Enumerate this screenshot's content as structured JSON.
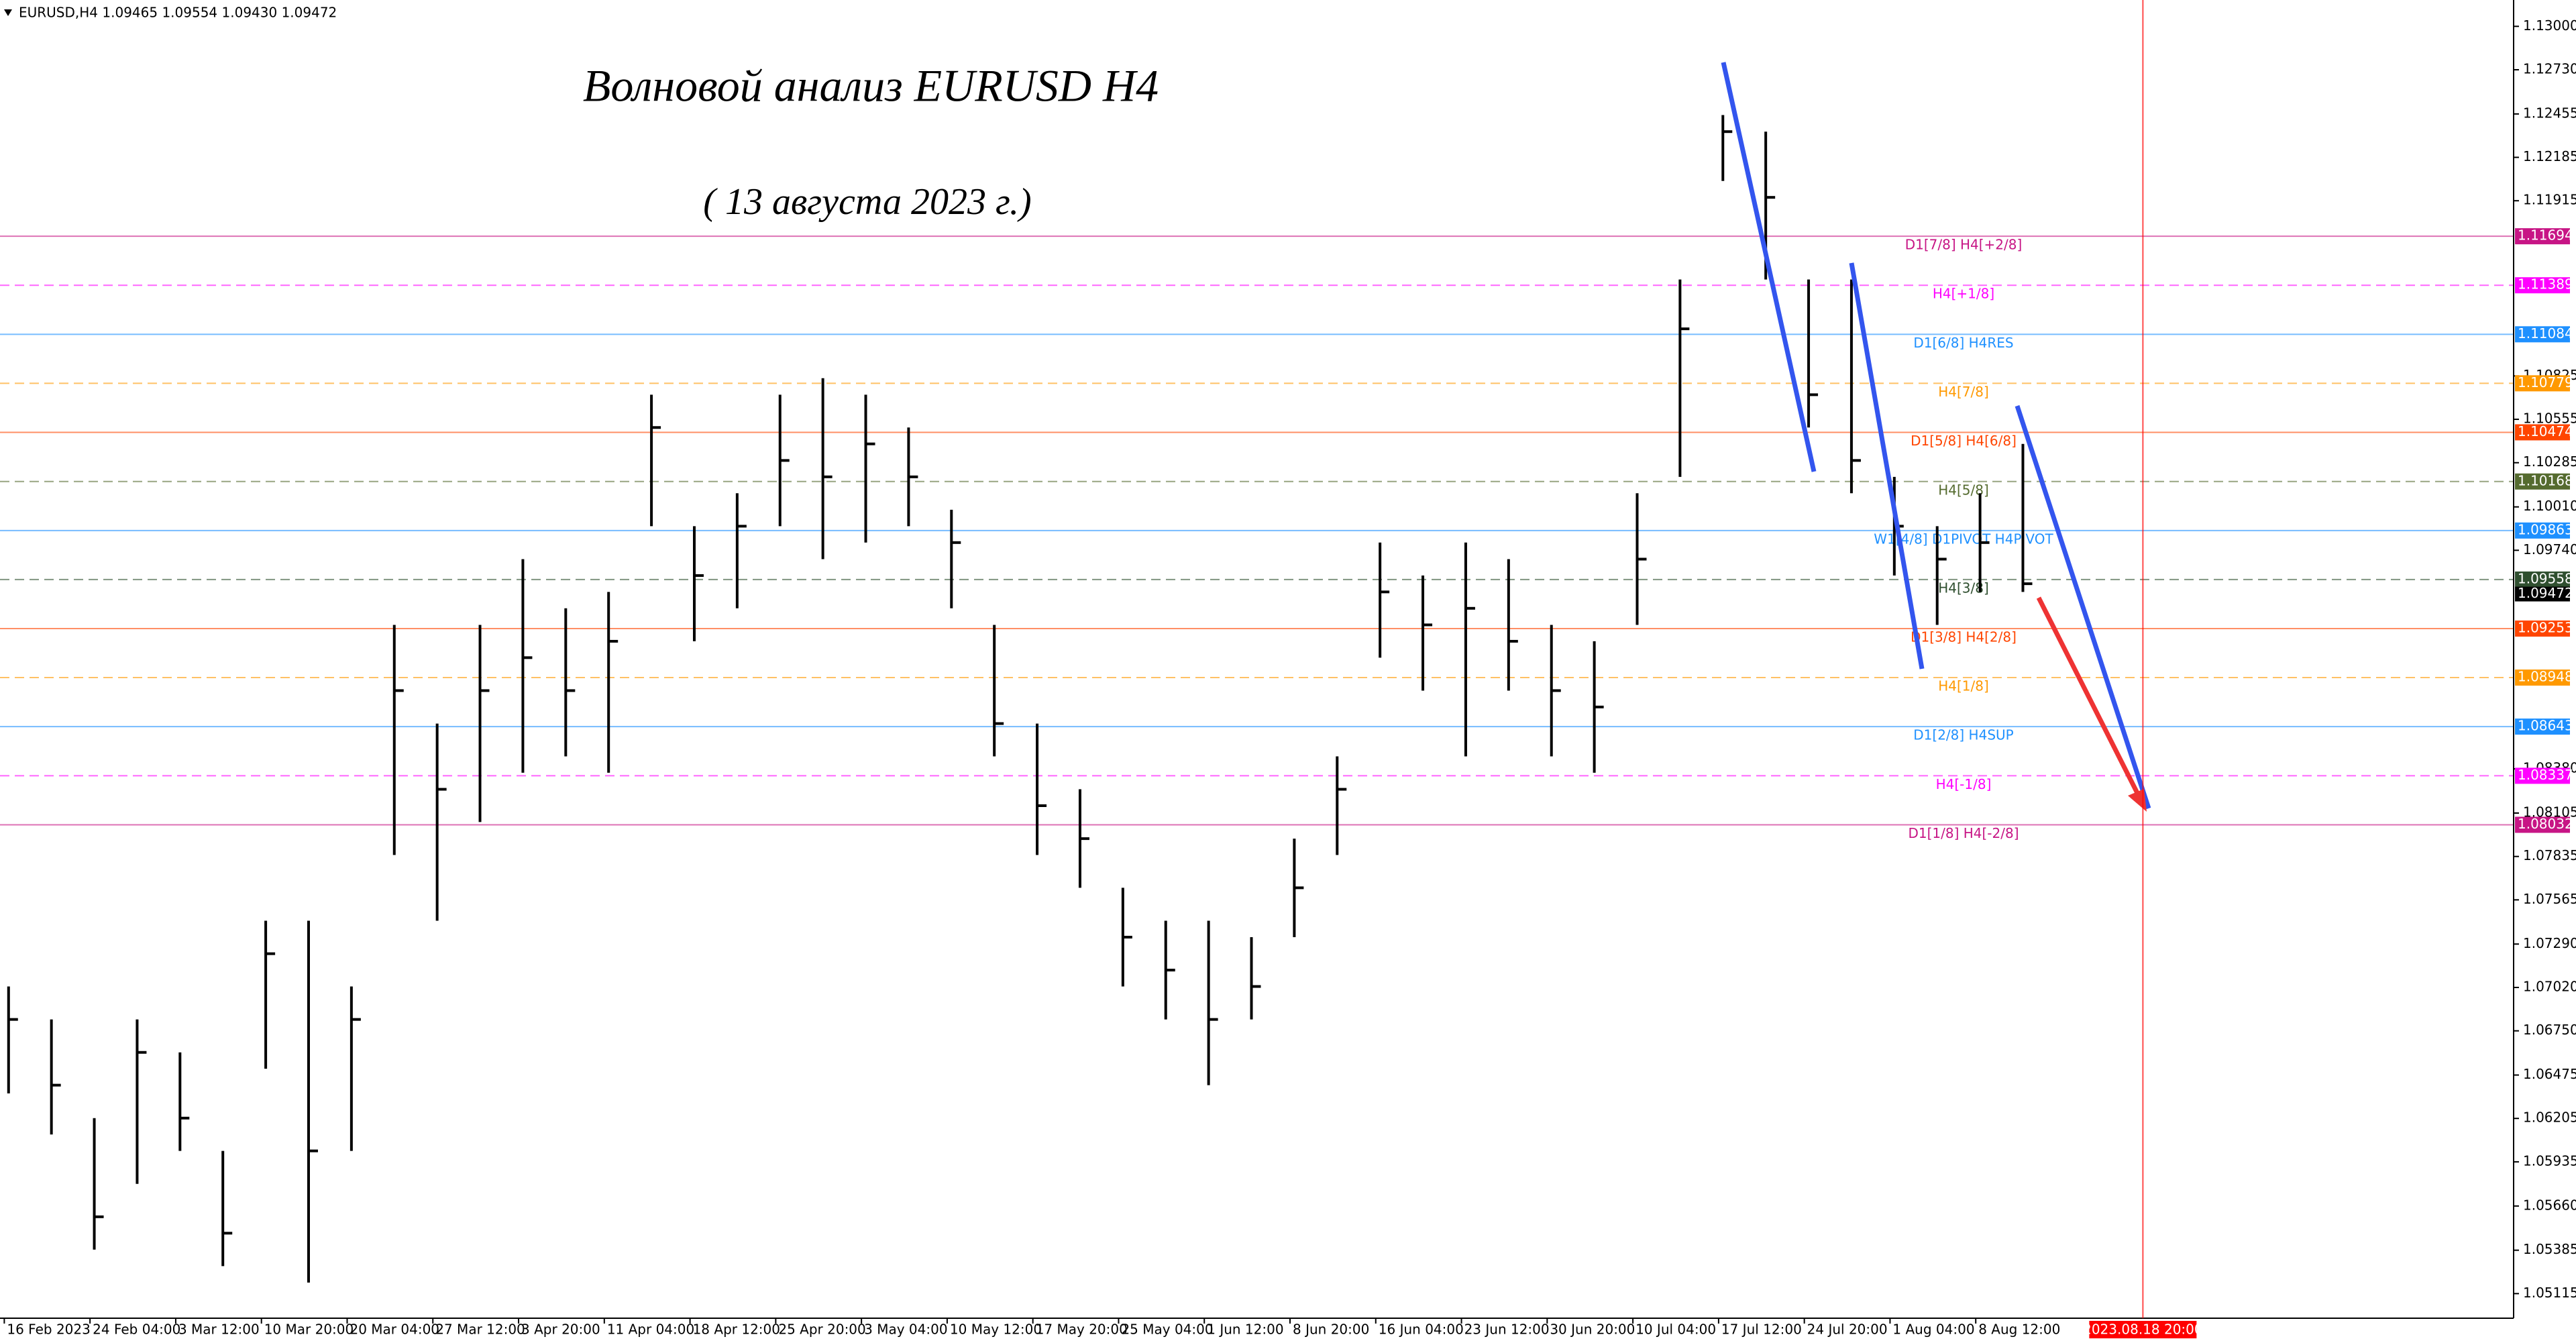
{
  "chart_data": {
    "type": "ohlc",
    "header": "EURUSD,H4  1.09465 1.09554 1.09430 1.09472",
    "title": "Волновой анализ EURUSD H4",
    "subtitle": "( 13 августа 2023 г.)",
    "color": "#000000",
    "xlim": [
      -2,
      1171
    ],
    "ylim": [
      1.04962,
      1.13164
    ],
    "x": [
      2,
      22,
      42,
      62,
      82,
      102,
      122,
      142,
      162,
      182,
      202,
      222,
      242,
      262,
      282,
      302,
      322,
      342,
      362,
      382,
      402,
      422,
      442,
      462,
      482,
      502,
      522,
      542,
      562,
      582,
      602,
      622,
      642,
      662,
      682,
      702,
      722,
      742,
      762,
      782,
      802,
      822,
      842,
      862,
      882,
      902,
      922,
      942
    ],
    "high": [
      1.07026,
      1.06821,
      1.06207,
      1.06821,
      1.06616,
      1.06003,
      1.07435,
      1.07435,
      1.07026,
      1.09276,
      1.08662,
      1.09276,
      1.09685,
      1.09379,
      1.09481,
      1.10708,
      1.0989,
      1.10095,
      1.10708,
      1.10811,
      1.10708,
      1.10504,
      1.09992,
      1.09276,
      1.08662,
      1.08253,
      1.0764,
      1.07435,
      1.07435,
      1.07333,
      1.07946,
      1.08458,
      1.09788,
      1.09583,
      1.09788,
      1.09685,
      1.09276,
      1.09174,
      1.10095,
      1.11425,
      1.12448,
      1.12345,
      1.11425,
      1.11425,
      1.10197,
      1.0989,
      1.10095,
      1.10402
    ],
    "low": [
      1.06361,
      1.06105,
      1.05389,
      1.05798,
      1.06003,
      1.05286,
      1.06514,
      1.05184,
      1.06003,
      1.07844,
      1.07435,
      1.08049,
      1.08356,
      1.08458,
      1.08356,
      1.0989,
      1.09174,
      1.09379,
      1.0989,
      1.09685,
      1.09788,
      1.0989,
      1.09379,
      1.08458,
      1.07844,
      1.0764,
      1.07026,
      1.06821,
      1.06412,
      1.06821,
      1.07333,
      1.07844,
      1.09072,
      1.08867,
      1.08458,
      1.08867,
      1.08458,
      1.08356,
      1.09276,
      1.10197,
      1.12038,
      1.11425,
      1.10504,
      1.10095,
      1.09583,
      1.09276,
      1.09481,
      1.09481
    ],
    "close": [
      1.06821,
      1.06412,
      1.05593,
      1.06616,
      1.06207,
      1.05491,
      1.0723,
      1.06003,
      1.06821,
      1.08867,
      1.08253,
      1.08867,
      1.09072,
      1.08867,
      1.09174,
      1.10504,
      1.09583,
      1.0989,
      1.10299,
      1.10197,
      1.10402,
      1.10197,
      1.09788,
      1.08662,
      1.08151,
      1.07946,
      1.07333,
      1.07128,
      1.06821,
      1.07026,
      1.0764,
      1.08253,
      1.09481,
      1.09276,
      1.09379,
      1.09174,
      1.08867,
      1.08765,
      1.09685,
      1.11118,
      1.12345,
      1.11936,
      1.10708,
      1.10299,
      1.0989,
      1.09685,
      1.09788,
      1.09532
    ],
    "yticks": [
      {
        "value": 1.13,
        "label": "1.13000"
      },
      {
        "value": 1.1273,
        "label": "1.12730"
      },
      1.12455,
      1.12185,
      1.11915,
      1.10825,
      1.10555,
      1.10285,
      {
        "value": 1.1001,
        "label": "1.10010"
      },
      {
        "value": 1.0974,
        "label": "1.09740"
      },
      {
        "value": 1.0838,
        "label": "1.08380"
      },
      1.08105,
      1.07835,
      1.07565,
      {
        "value": 1.0729,
        "label": "1.07290"
      },
      {
        "value": 1.0702,
        "label": "1.07020"
      },
      {
        "value": 1.0675,
        "label": "1.06750"
      },
      1.06475,
      1.06205,
      1.05935,
      {
        "value": 1.0566,
        "label": "1.05660"
      },
      1.05385,
      1.05115
    ],
    "xticks": [
      {
        "value": 0,
        "label": "16 Feb 2023"
      },
      {
        "value": 40,
        "label": "24 Feb 04:00"
      },
      {
        "value": 80,
        "label": "3 Mar 12:00"
      },
      {
        "value": 120,
        "label": "10 Mar 20:00"
      },
      {
        "value": 160,
        "label": "20 Mar 04:00"
      },
      {
        "value": 200,
        "label": "27 Mar 12:00"
      },
      {
        "value": 240,
        "label": "3 Apr 20:00"
      },
      {
        "value": 280,
        "label": "11 Apr 04:00"
      },
      {
        "value": 320,
        "label": "18 Apr 12:00"
      },
      {
        "value": 360,
        "label": "25 Apr 20:00"
      },
      {
        "value": 400,
        "label": "3 May 04:00"
      },
      {
        "value": 440,
        "label": "10 May 12:00"
      },
      {
        "value": 480,
        "label": "17 May 20:00"
      },
      {
        "value": 520,
        "label": "25 May 04:00"
      },
      {
        "value": 560,
        "label": "1 Jun 12:00"
      },
      {
        "value": 600,
        "label": "8 Jun 20:00"
      },
      {
        "value": 640,
        "label": "16 Jun 04:00"
      },
      {
        "value": 680,
        "label": "23 Jun 12:00"
      },
      {
        "value": 720,
        "label": "30 Jun 20:00"
      },
      {
        "value": 760,
        "label": "10 Jul 04:00"
      },
      {
        "value": 800,
        "label": "17 Jul 12:00"
      },
      {
        "value": 840,
        "label": "24 Jul 20:00"
      },
      {
        "value": 880,
        "label": "1 Aug 04:00"
      },
      {
        "value": 920,
        "label": "8 Aug 12:00"
      }
    ],
    "marker": {
      "value": 998,
      "label": "2023.08.18 20:00",
      "color": "#ff0000"
    },
    "last": 1.09472,
    "levels": [
      {
        "value": 1.11694,
        "label": "D1[7/8] H4[+2/8]",
        "color": "#c71585",
        "dashed": false
      },
      {
        "value": 1.11389,
        "label": "H4[+1/8]",
        "color": "#ff00ff",
        "dashed": true
      },
      {
        "value": 1.11084,
        "label": "D1[6/8] H4RES",
        "color": "#1e90ff",
        "dashed": false
      },
      {
        "value": 1.10779,
        "label": "H4[7/8]",
        "color": "#ff9900",
        "dashed": true
      },
      {
        "value": 1.10474,
        "label": "D1[5/8] H4[6/8]",
        "color": "#ff4500",
        "dashed": false
      },
      {
        "value": 1.10168,
        "label": "H4[5/8]",
        "color": "#556b2f",
        "dashed": true
      },
      {
        "value": 1.09863,
        "label": "W1[4/8] D1PIVOT H4PIVOT",
        "color": "#1e90ff",
        "dashed": false
      },
      {
        "value": 1.09558,
        "label": "H4[3/8]",
        "color": "#2f4f2f",
        "dashed": true
      },
      {
        "value": 1.09253,
        "label": "D1[3/8] H4[2/8]",
        "color": "#ff4500",
        "dashed": false
      },
      {
        "value": 1.08948,
        "label": "H4[1/8]",
        "color": "#ff9900",
        "dashed": true
      },
      {
        "value": 1.08643,
        "label": "D1[2/8] H4SUP",
        "color": "#1e90ff",
        "dashed": false
      },
      {
        "value": 1.08337,
        "label": "H4[-1/8]",
        "color": "#ff00ff",
        "dashed": true
      },
      {
        "value": 1.08032,
        "label": "D1[1/8] H4[-2/8]",
        "color": "#c71585",
        "dashed": false
      }
    ]
  }
}
